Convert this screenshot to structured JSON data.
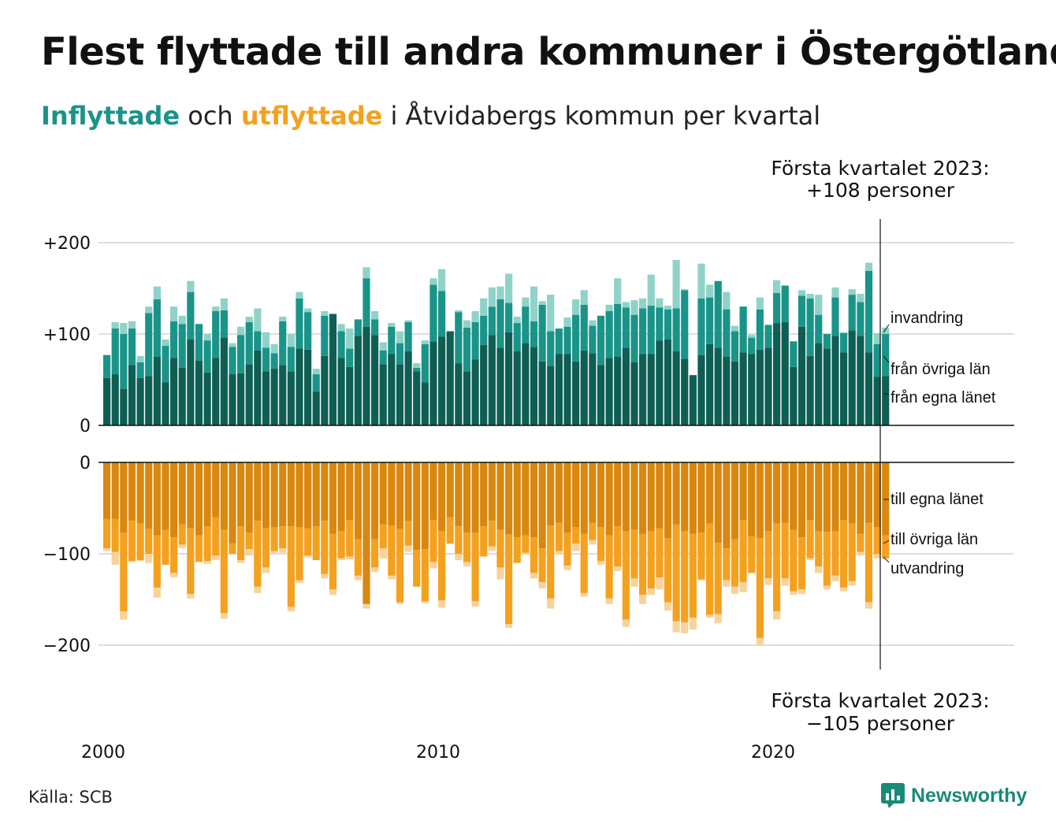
{
  "title": "Flest flyttade till andra kommuner i Östergötland",
  "subtitle": {
    "inflow_word": "Inflyttade",
    "connector": "och",
    "outflow_word": "utflyttade",
    "rest": "i Åtvidabergs kommun per kvartal"
  },
  "annotation_top": {
    "line1": "Första kvartalet 2023:",
    "line2": "+108 personer"
  },
  "annotation_bottom": {
    "line1": "Första kvartalet 2023:",
    "line2": "−105 personer"
  },
  "source": "Källa: SCB",
  "brand": "Newsworthy",
  "colors": {
    "in_own_county": "#0e5e54",
    "in_other_counties": "#1a9488",
    "in_immigration": "#8fd3c8",
    "out_own_county": "#d8870f",
    "out_other_counties": "#f4a11f",
    "out_emigration": "#f7d39c",
    "brand": "#1a8a78"
  },
  "chart_data": {
    "type": "bar",
    "stacked": true,
    "x_start": "2000 Q1",
    "x_end": "2023 Q1",
    "x_ticks": [
      "2000",
      "2010",
      "2020"
    ],
    "panels": [
      {
        "name": "inflyttade",
        "y_ticks": [
          "0",
          "+100",
          "+200"
        ],
        "ylim": [
          0,
          230
        ],
        "grid": true,
        "series": [
          {
            "name": "från egna länet",
            "values": [
              52,
              56,
              40,
              66,
              52,
              54,
              75,
              47,
              74,
              63,
              94,
              71,
              58,
              74,
              96,
              56,
              57,
              67,
              82,
              59,
              62,
              66,
              59,
              84,
              83,
              37,
              76,
              122,
              74,
              64,
              98,
              108,
              99,
              67,
              78,
              67,
              81,
              59,
              47,
              92,
              97,
              103,
              68,
              59,
              72,
              88,
              99,
              85,
              102,
              81,
              90,
              86,
              70,
              65,
              78,
              78,
              70,
              82,
              79,
              66,
              74,
              75,
              85,
              69,
              78,
              78,
              93,
              94,
              81,
              73,
              55,
              77,
              89,
              85,
              75,
              70,
              80,
              78,
              83,
              85,
              112,
              113,
              64,
              108,
              76,
              90,
              84,
              98,
              80,
              104,
              98,
              80,
              53,
              54
            ]
          },
          {
            "name": "från övriga län",
            "values": [
              25,
              50,
              60,
              40,
              17,
              69,
              63,
              40,
              40,
              48,
              52,
              40,
              35,
              51,
              30,
              30,
              42,
              46,
              21,
              26,
              17,
              48,
              27,
              55,
              41,
              19,
              44,
              0,
              29,
              20,
              18,
              53,
              17,
              15,
              30,
              23,
              32,
              4,
              42,
              62,
              50,
              0,
              56,
              48,
              41,
              32,
              31,
              53,
              32,
              31,
              40,
              28,
              62,
              38,
              28,
              30,
              51,
              50,
              30,
              54,
              51,
              58,
              44,
              52,
              50,
              53,
              36,
              33,
              47,
              75,
              0,
              62,
              51,
              73,
              52,
              33,
              50,
              18,
              44,
              25,
              33,
              40,
              28,
              34,
              63,
              31,
              16,
              42,
              21,
              39,
              37,
              89,
              36,
              46
            ]
          },
          {
            "name": "invandring",
            "values": [
              0,
              7,
              12,
              8,
              7,
              7,
              14,
              7,
              16,
              9,
              12,
              0,
              7,
              5,
              13,
              4,
              9,
              6,
              25,
              17,
              10,
              5,
              14,
              7,
              4,
              6,
              5,
              0,
              8,
              22,
              0,
              12,
              9,
              9,
              4,
              13,
              2,
              5,
              4,
              7,
              24,
              0,
              2,
              8,
              12,
              19,
              21,
              14,
              32,
              7,
              10,
              38,
              4,
              40,
              0,
              10,
              17,
              16,
              6,
              0,
              7,
              28,
              6,
              16,
              11,
              34,
              10,
              4,
              53,
              1,
              0,
              38,
              14,
              0,
              19,
              6,
              0,
              3,
              13,
              0,
              14,
              0,
              0,
              6,
              5,
              22,
              0,
              11,
              1,
              6,
              9,
              9,
              12,
              7
            ]
          }
        ]
      },
      {
        "name": "utflyttade",
        "y_ticks": [
          "0",
          "−100",
          "−200"
        ],
        "ylim": [
          -240,
          0
        ],
        "grid": true,
        "series": [
          {
            "name": "till egna länet",
            "values": [
              -62,
              -62,
              -77,
              -64,
              -67,
              -73,
              -80,
              -74,
              -82,
              -68,
              -72,
              -80,
              -70,
              -60,
              -74,
              -89,
              -70,
              -77,
              -64,
              -72,
              -71,
              -70,
              -70,
              -71,
              -72,
              -70,
              -64,
              -78,
              -75,
              -63,
              -84,
              -155,
              -84,
              -68,
              -69,
              -73,
              -64,
              -96,
              -95,
              -63,
              -75,
              -60,
              -70,
              -77,
              -77,
              -70,
              -64,
              -74,
              -79,
              -82,
              -80,
              -82,
              -94,
              -69,
              -66,
              -77,
              -71,
              -78,
              -66,
              -71,
              -80,
              -70,
              -75,
              -74,
              -78,
              -75,
              -72,
              -83,
              -68,
              -75,
              -78,
              -77,
              -67,
              -88,
              -94,
              -84,
              -63,
              -81,
              -83,
              -75,
              -67,
              -66,
              -74,
              -82,
              -63,
              -75,
              -76,
              -75,
              -63,
              -67,
              -78,
              -66,
              -71,
              -80
            ]
          },
          {
            "name": "till övriga län",
            "values": [
              -32,
              -36,
              -86,
              -44,
              -40,
              -27,
              -57,
              -38,
              -39,
              -22,
              -72,
              -29,
              -38,
              -42,
              -91,
              -11,
              -37,
              -18,
              -72,
              -43,
              -26,
              -24,
              -88,
              -58,
              -30,
              -37,
              -58,
              -61,
              -30,
              -40,
              -40,
              0,
              -31,
              -26,
              -55,
              -80,
              -27,
              -40,
              -57,
              -46,
              -76,
              -29,
              -30,
              -32,
              -75,
              -33,
              -28,
              -41,
              -98,
              -28,
              -19,
              -39,
              -37,
              -80,
              -31,
              -36,
              -18,
              -65,
              -19,
              -37,
              -69,
              -44,
              -97,
              -53,
              -67,
              -63,
              -54,
              -70,
              -106,
              -100,
              -92,
              -51,
              -100,
              -78,
              -35,
              -52,
              -68,
              -40,
              -109,
              -52,
              -96,
              -61,
              -67,
              -57,
              -42,
              -39,
              -59,
              -49,
              -74,
              -63,
              -20,
              -87,
              -29,
              -25
            ]
          },
          {
            "name": "utvandring",
            "values": [
              -3,
              -14,
              -9,
              -1,
              -1,
              -10,
              -11,
              0,
              -5,
              -4,
              -5,
              0,
              -3,
              -5,
              -6,
              0,
              -3,
              -7,
              -7,
              -6,
              -3,
              -5,
              -5,
              -3,
              -2,
              0,
              -5,
              -6,
              -2,
              -3,
              -5,
              -5,
              -5,
              -11,
              -4,
              -2,
              -7,
              0,
              -2,
              -7,
              -8,
              0,
              -7,
              -5,
              -6,
              0,
              -5,
              -13,
              -4,
              0,
              -2,
              -6,
              -7,
              -11,
              -4,
              -5,
              -8,
              -4,
              -5,
              -4,
              -6,
              -5,
              -8,
              -9,
              -10,
              -7,
              -13,
              -9,
              -12,
              -12,
              -13,
              -1,
              -3,
              -10,
              -7,
              -8,
              -11,
              0,
              -8,
              -7,
              -9,
              -8,
              -4,
              -5,
              -2,
              -7,
              -4,
              -6,
              -4,
              -5,
              -4,
              -7,
              -5,
              0
            ]
          }
        ]
      }
    ],
    "bar_labels_in": [
      "invandring",
      "från övriga län",
      "från egna länet"
    ],
    "bar_labels_out": [
      "till egna länet",
      "till övriga län",
      "utvandring"
    ]
  }
}
